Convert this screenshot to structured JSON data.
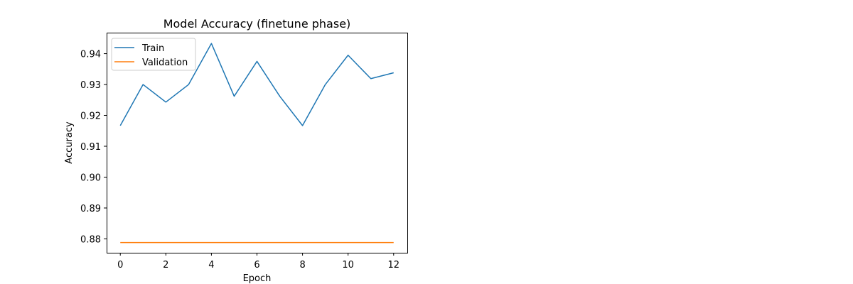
{
  "chart_data": {
    "type": "line",
    "title": "Model Accuracy (finetune phase)",
    "xlabel": "Epoch",
    "ylabel": "Accuracy",
    "x": [
      0,
      1,
      2,
      3,
      4,
      5,
      6,
      7,
      8,
      9,
      10,
      11,
      12
    ],
    "xlim": [
      -0.6,
      12.6
    ],
    "ylim": [
      0.8755,
      0.9468
    ],
    "xticks": [
      0,
      2,
      4,
      6,
      8,
      10,
      12
    ],
    "yticks": [
      0.88,
      0.89,
      0.9,
      0.91,
      0.92,
      0.93,
      0.94
    ],
    "ytick_labels": [
      "0.88",
      "0.89",
      "0.90",
      "0.91",
      "0.92",
      "0.93",
      "0.94"
    ],
    "grid": false,
    "legend_position": "upper-left",
    "series": [
      {
        "name": "Train",
        "color": "#1f77b4",
        "values": [
          0.9167,
          0.93,
          0.9243,
          0.93,
          0.9433,
          0.9262,
          0.9375,
          0.9262,
          0.9167,
          0.93,
          0.9395,
          0.9319,
          0.9338
        ]
      },
      {
        "name": "Validation",
        "color": "#ff7f0e",
        "values": [
          0.8788,
          0.8788,
          0.8788,
          0.8788,
          0.8788,
          0.8788,
          0.8788,
          0.8788,
          0.8788,
          0.8788,
          0.8788,
          0.8788,
          0.8788
        ]
      }
    ]
  }
}
